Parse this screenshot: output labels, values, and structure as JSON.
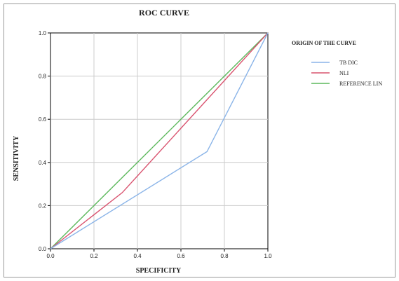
{
  "chart_data": {
    "type": "line",
    "title": "ROC CURVE",
    "xlabel": "SPECIFICITY",
    "ylabel": "SENSITIVITY",
    "xlim": [
      0,
      1
    ],
    "ylim": [
      0,
      1
    ],
    "x_ticks": [
      "0.0",
      "0.2",
      "0.4",
      "0.6",
      "0.8",
      "1.0"
    ],
    "y_ticks": [
      "0.0",
      "0.2",
      "0.4",
      "0.6",
      "0.8",
      "1.0"
    ],
    "grid": true,
    "legend": {
      "title": "ORIGIN OF THE CURVE",
      "placement": "right"
    },
    "series": [
      {
        "name": "TB DIC",
        "color": "#8ab4e8",
        "x": [
          0,
          0.72,
          1
        ],
        "y": [
          0,
          0.45,
          1
        ]
      },
      {
        "name": "NLI",
        "color": "#d9536f",
        "x": [
          0,
          0.33,
          1
        ],
        "y": [
          0,
          0.26,
          1
        ]
      },
      {
        "name": "REFERENCE LIN",
        "color": "#5cb85c",
        "x": [
          0,
          1
        ],
        "y": [
          0,
          1
        ]
      }
    ]
  }
}
